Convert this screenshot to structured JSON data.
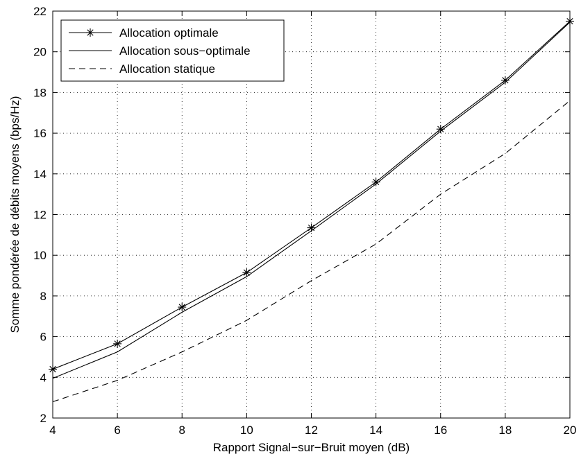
{
  "chart_data": {
    "type": "line",
    "title": "",
    "xlabel": "Rapport Signal−sur−Bruit moyen (dB)",
    "ylabel": "Somme pondérée de débits moyens (bps/Hz)",
    "xlim": [
      4,
      20
    ],
    "ylim": [
      2,
      22
    ],
    "grid": true,
    "legend_position": "top-left",
    "x": [
      4,
      6,
      8,
      10,
      12,
      14,
      16,
      18,
      20
    ],
    "xticks": [
      4,
      6,
      8,
      10,
      12,
      14,
      16,
      18,
      20
    ],
    "yticks": [
      2,
      4,
      6,
      8,
      10,
      12,
      14,
      16,
      18,
      20,
      22
    ],
    "series": [
      {
        "name": "Allocation optimale",
        "style": "solid-asterisk",
        "values": [
          4.4,
          5.65,
          7.45,
          9.15,
          11.35,
          13.6,
          16.2,
          18.6,
          21.5
        ]
      },
      {
        "name": "Allocation sous−optimale",
        "style": "solid",
        "values": [
          3.95,
          5.25,
          7.2,
          8.95,
          11.2,
          13.5,
          16.1,
          18.5,
          21.45
        ]
      },
      {
        "name": "Allocation statique",
        "style": "dashed",
        "values": [
          2.8,
          3.85,
          5.25,
          6.8,
          8.75,
          10.55,
          13.0,
          15.0,
          17.6
        ]
      }
    ],
    "colors": {
      "line": "#000000",
      "background": "#ffffff"
    }
  }
}
